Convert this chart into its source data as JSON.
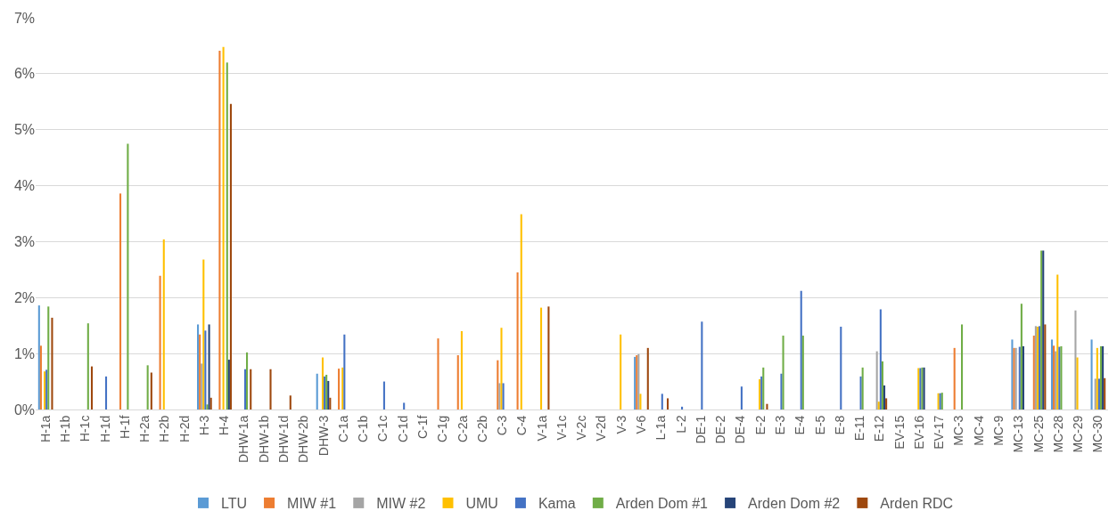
{
  "chart_data": {
    "type": "bar",
    "categories": [
      "H-1a",
      "H-1b",
      "H-1c",
      "H-1d",
      "H-1f",
      "H-2a",
      "H-2b",
      "H-2d",
      "H-3",
      "H-4",
      "DHW-1a",
      "DHW-1b",
      "DHW-1d",
      "DHW-2b",
      "DHW-3",
      "C-1a",
      "C-1b",
      "C-1c",
      "C-1d",
      "C-1f",
      "C-1g",
      "C-2a",
      "C-2b",
      "C-3",
      "C-4",
      "V-1a",
      "V-1c",
      "V-2c",
      "V-2d",
      "V-3",
      "V-6",
      "L-1a",
      "L-2",
      "DE-1",
      "DE-2",
      "DE-4",
      "E-2",
      "E-3",
      "E-4",
      "E-5",
      "E-8",
      "E-11",
      "E-12",
      "EV-15",
      "EV-16",
      "EV-17",
      "MC-3",
      "MC-4",
      "MC-9",
      "MC-13",
      "MC-25",
      "MC-28",
      "MC-29",
      "MC-30"
    ],
    "series": [
      {
        "name": "LTU",
        "color": "#5b9bd5",
        "values": [
          1.86,
          0,
          0,
          0,
          0,
          0,
          0,
          0,
          1.52,
          0,
          0,
          0,
          0,
          0,
          0.64,
          0,
          0,
          0,
          0,
          0,
          0,
          0,
          0,
          0,
          0,
          0,
          0,
          0,
          0,
          0,
          0.94,
          0,
          0,
          0,
          0,
          0,
          0,
          0,
          0,
          0,
          0,
          0,
          0,
          0,
          0,
          0,
          0,
          0,
          0,
          1.25,
          0,
          1.25,
          0,
          1.25
        ]
      },
      {
        "name": "MIW #1",
        "color": "#ed7d31",
        "values": [
          1.14,
          0,
          0,
          0,
          3.86,
          0,
          2.39,
          0,
          1.34,
          6.41,
          0,
          0,
          0,
          0,
          0,
          0.73,
          0,
          0,
          0,
          0,
          1.27,
          0.97,
          0,
          0.88,
          2.45,
          0,
          0,
          0,
          0,
          0,
          0.97,
          0,
          0,
          0,
          0,
          0,
          0,
          0,
          0,
          0,
          0,
          0,
          0,
          0,
          0,
          0,
          1.1,
          0,
          0,
          1.1,
          1.32,
          1.14,
          0,
          0
        ]
      },
      {
        "name": "MIW #2",
        "color": "#a5a5a5",
        "values": [
          0,
          0,
          0,
          0,
          0,
          0,
          0,
          0,
          0.82,
          0,
          0,
          0,
          0,
          0,
          0,
          0,
          0,
          0,
          0,
          0,
          0,
          0,
          0,
          0.47,
          0,
          0,
          0,
          0,
          0,
          0,
          0.99,
          0,
          0,
          0,
          0,
          0,
          0,
          0,
          0,
          0,
          0,
          0,
          1.04,
          0,
          0,
          0,
          0,
          0,
          0,
          1.1,
          1.49,
          1.04,
          1.77,
          0.55
        ]
      },
      {
        "name": "UMU",
        "color": "#ffc000",
        "values": [
          0.68,
          0,
          0,
          0,
          0,
          0,
          3.04,
          0,
          2.68,
          6.48,
          0,
          0,
          0,
          0,
          0.93,
          0.75,
          0,
          0,
          0,
          0,
          0,
          1.4,
          0,
          1.46,
          3.49,
          1.82,
          0,
          0,
          0,
          1.34,
          0.28,
          0,
          0,
          0,
          0,
          0,
          0.54,
          0,
          0,
          0,
          0,
          0,
          0.14,
          0,
          0.74,
          0.29,
          0,
          0,
          0,
          0,
          1.48,
          2.41,
          0.93,
          1.1
        ]
      },
      {
        "name": "Kama",
        "color": "#4472c4",
        "values": [
          0.71,
          0,
          0,
          0.59,
          0,
          0,
          0,
          0,
          1.41,
          0,
          0.72,
          0,
          0,
          0,
          0.59,
          1.34,
          0,
          0.5,
          0.12,
          0,
          0,
          0,
          0,
          0.47,
          0,
          0,
          0,
          0,
          0,
          0,
          0,
          0.28,
          0.05,
          1.57,
          0,
          0.41,
          0.59,
          0.64,
          2.12,
          0,
          1.48,
          0.59,
          1.79,
          0,
          0.74,
          0.29,
          0,
          0,
          0,
          1.12,
          1.49,
          1.12,
          0,
          0.55
        ]
      },
      {
        "name": "Arden Dom #1",
        "color": "#70ad47",
        "values": [
          1.84,
          0,
          1.54,
          0,
          4.75,
          0.79,
          0,
          0,
          0.09,
          6.2,
          1.02,
          0,
          0,
          0,
          0.62,
          0,
          0,
          0,
          0,
          0,
          0,
          0,
          0,
          0,
          0,
          0,
          0,
          0,
          0,
          0,
          0,
          0,
          0,
          0,
          0,
          0,
          0.75,
          1.32,
          1.32,
          0,
          0,
          0.75,
          0.86,
          0,
          0.75,
          0.3,
          1.52,
          0,
          0,
          1.89,
          2.84,
          1.13,
          0,
          1.13
        ]
      },
      {
        "name": "Arden Dom #2",
        "color": "#264478",
        "values": [
          0,
          0,
          0,
          0,
          0,
          0,
          0,
          0,
          1.52,
          0.89,
          0,
          0,
          0,
          0,
          0.51,
          0,
          0,
          0,
          0,
          0,
          0,
          0,
          0,
          0,
          0,
          0,
          0,
          0,
          0,
          0,
          0,
          0,
          0,
          0,
          0,
          0,
          0,
          0,
          0,
          0,
          0,
          0,
          0.43,
          0,
          0.75,
          0,
          0,
          0,
          0,
          1.13,
          2.84,
          0,
          0,
          1.13
        ]
      },
      {
        "name": "Arden RDC",
        "color": "#9e480e",
        "values": [
          1.64,
          0,
          0.77,
          0,
          0,
          0.66,
          0,
          0,
          0.21,
          5.46,
          0.72,
          0.72,
          0.25,
          0,
          0.21,
          0,
          0,
          0,
          0,
          0,
          0,
          0,
          0,
          0,
          0,
          1.84,
          0,
          0,
          0,
          0,
          1.1,
          0.2,
          0,
          0,
          0,
          0,
          0.1,
          0,
          0,
          0,
          0,
          0,
          0.2,
          0,
          0,
          0,
          0,
          0,
          0,
          0,
          1.52,
          0,
          0,
          0.56
        ]
      }
    ],
    "ylim": [
      0,
      7
    ],
    "yticks": [
      {
        "value": 0,
        "label": "0%"
      },
      {
        "value": 1,
        "label": "1%"
      },
      {
        "value": 2,
        "label": "2%"
      },
      {
        "value": 3,
        "label": "3%"
      },
      {
        "value": 4,
        "label": "4%"
      },
      {
        "value": 5,
        "label": "5%"
      },
      {
        "value": 6,
        "label": "6%"
      },
      {
        "value": 7,
        "label": "7%"
      }
    ],
    "grid": "y",
    "legend": "bottom"
  }
}
